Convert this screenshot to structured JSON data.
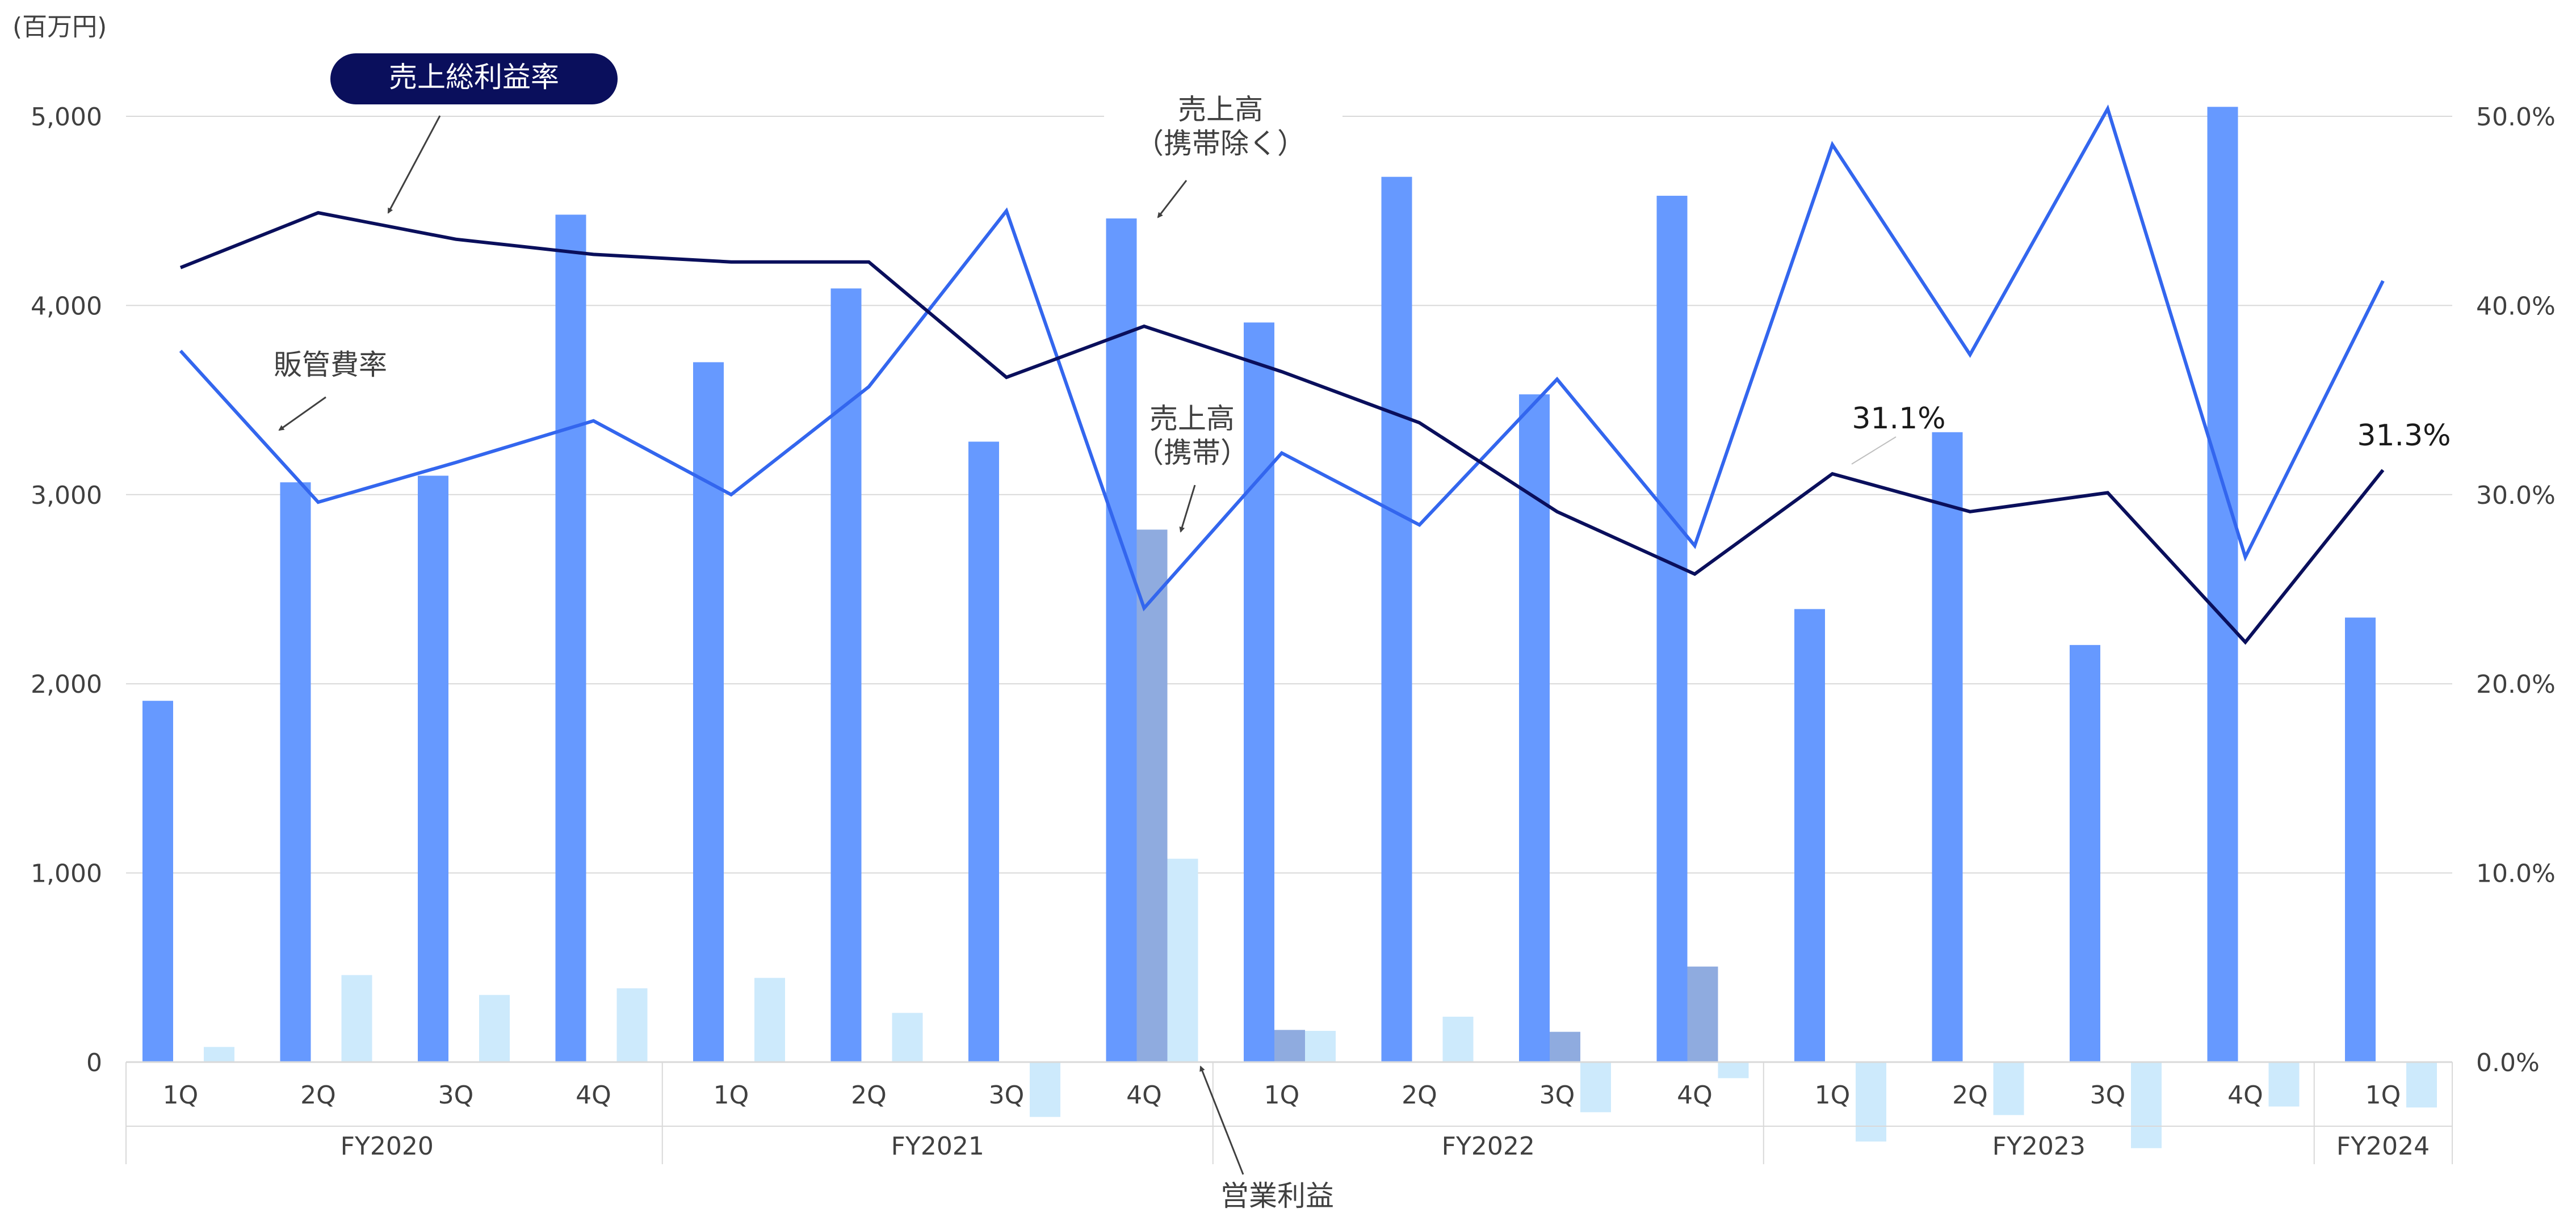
{
  "chart_data": {
    "type": "bar",
    "y_unit_label": "(百万円)",
    "quarters": [
      "1Q",
      "2Q",
      "3Q",
      "4Q",
      "1Q",
      "2Q",
      "3Q",
      "4Q",
      "1Q",
      "2Q",
      "3Q",
      "4Q",
      "1Q",
      "2Q",
      "3Q",
      "4Q",
      "1Q"
    ],
    "fiscal_years": [
      {
        "label": "FY2020",
        "start": 0,
        "end": 3
      },
      {
        "label": "FY2021",
        "start": 4,
        "end": 7
      },
      {
        "label": "FY2022",
        "start": 8,
        "end": 11
      },
      {
        "label": "FY2023",
        "start": 12,
        "end": 15
      },
      {
        "label": "FY2024",
        "start": 16,
        "end": 16
      }
    ],
    "y_left": {
      "min": 0,
      "max": 5000,
      "ticks": [
        0,
        1000,
        2000,
        3000,
        4000,
        5000
      ],
      "tick_labels": [
        "0",
        "1,000",
        "2,000",
        "3,000",
        "4,000",
        "5,000"
      ]
    },
    "y_right": {
      "min": 0,
      "max": 50,
      "ticks": [
        0,
        10,
        20,
        30,
        40,
        50
      ],
      "tick_labels": [
        "0.0%",
        "10.0%",
        "20.0%",
        "30.0%",
        "40.0%",
        "50.0%"
      ]
    },
    "grid": true,
    "colors": {
      "sales_ex_mobile": "#6699ff",
      "sales_mobile": "#8fabdf",
      "operating_profit": "#cdeafc",
      "gross_margin": "#0a0f5c",
      "sga_ratio": "#3366ee",
      "grid": "#d9d9d9",
      "callout_bg": "#0a0f5c",
      "callout_text": "#ffffff"
    },
    "series": [
      {
        "name": "売上高（携帯除く）",
        "kind": "bar",
        "axis": "left",
        "values": [
          1910,
          3065,
          3100,
          4480,
          3700,
          4090,
          3280,
          4460,
          3910,
          4680,
          3530,
          4580,
          2395,
          3330,
          2205,
          5050,
          2350
        ]
      },
      {
        "name": "売上高（携帯）",
        "kind": "bar",
        "axis": "left",
        "values": [
          0,
          0,
          0,
          0,
          0,
          0,
          0,
          2815,
          170,
          0,
          160,
          505,
          0,
          0,
          0,
          0,
          0
        ]
      },
      {
        "name": "営業利益",
        "kind": "bar",
        "axis": "left",
        "values": [
          80,
          460,
          355,
          390,
          445,
          260,
          -290,
          1075,
          165,
          240,
          -265,
          -85,
          -420,
          -280,
          -455,
          -235,
          -240
        ]
      },
      {
        "name": "売上総利益率",
        "kind": "line",
        "axis": "right",
        "values": [
          42.0,
          44.9,
          43.5,
          42.7,
          42.3,
          42.3,
          36.2,
          38.9,
          36.5,
          33.8,
          29.1,
          25.8,
          31.1,
          29.1,
          30.1,
          22.2,
          31.3
        ]
      },
      {
        "name": "販管費率",
        "kind": "line",
        "axis": "right",
        "values": [
          37.6,
          29.6,
          31.7,
          33.9,
          30.0,
          35.7,
          45.0,
          24.0,
          32.2,
          28.4,
          36.1,
          27.3,
          48.5,
          37.4,
          50.4,
          26.7,
          41.3
        ]
      }
    ],
    "annotations": {
      "gross_margin_label": "売上総利益率",
      "sga_label": "販管費率",
      "sales_ex_line1": "売上高",
      "sales_ex_line2": "（携帯除く）",
      "sales_mobile_line1": "売上高",
      "sales_mobile_line2": "（携帯）",
      "op_profit_label": "営業利益",
      "value_fy2023_1q": "31.1%",
      "value_fy2024_1q": "31.3%"
    }
  }
}
